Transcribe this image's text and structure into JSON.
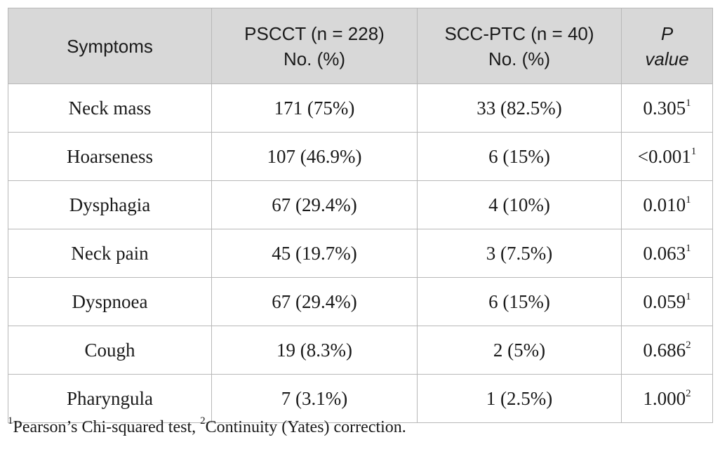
{
  "table": {
    "headers": [
      {
        "lines": [
          "Symptoms"
        ]
      },
      {
        "lines": [
          "PSCCT (n = 228)",
          "No. (%)"
        ]
      },
      {
        "lines": [
          "SCC-PTC (n = 40)",
          "No. (%)"
        ]
      },
      {
        "lines": [
          "P",
          "value"
        ]
      }
    ],
    "rows": [
      {
        "symptom": "Neck mass",
        "pscct": "171 (75%)",
        "sccptc": "33 (82.5%)",
        "p": "0.305",
        "note": "1"
      },
      {
        "symptom": "Hoarseness",
        "pscct": "107 (46.9%)",
        "sccptc": "6 (15%)",
        "p": "<0.001",
        "note": "1"
      },
      {
        "symptom": "Dysphagia",
        "pscct": "67 (29.4%)",
        "sccptc": "4 (10%)",
        "p": "0.010",
        "note": "1"
      },
      {
        "symptom": "Neck pain",
        "pscct": "45 (19.7%)",
        "sccptc": "3 (7.5%)",
        "p": "0.063",
        "note": "1"
      },
      {
        "symptom": "Dyspnoea",
        "pscct": "67 (29.4%)",
        "sccptc": "6 (15%)",
        "p": "0.059",
        "note": "1"
      },
      {
        "symptom": "Cough",
        "pscct": "19 (8.3%)",
        "sccptc": "2 (5%)",
        "p": "0.686",
        "note": "2"
      },
      {
        "symptom": "Pharyngula",
        "pscct": "7 (3.1%)",
        "sccptc": "1 (2.5%)",
        "p": "1.000",
        "note": "2"
      }
    ]
  },
  "footnote": {
    "n1": "1",
    "t1": "Pearson’s Chi-squared test, ",
    "n2": "2",
    "t2": "Continuity (Yates) correction."
  }
}
